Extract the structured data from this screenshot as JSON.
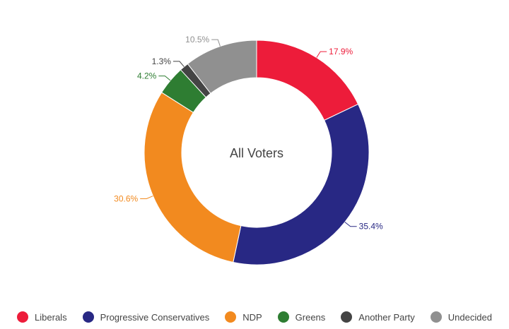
{
  "chart_data": {
    "type": "pie",
    "style": "donut",
    "center_label": "All Voters",
    "categories": [
      "Liberals",
      "Progressive Conservatives",
      "NDP",
      "Greens",
      "Another Party",
      "Undecided"
    ],
    "values": [
      17.9,
      35.4,
      30.6,
      4.2,
      1.3,
      10.5
    ],
    "value_labels": [
      "17.9%",
      "35.4%",
      "30.6%",
      "4.2%",
      "1.3%",
      "10.5%"
    ],
    "colors": [
      "#ed1c3a",
      "#282884",
      "#f28a1f",
      "#2e7d32",
      "#444444",
      "#909090"
    ],
    "legend_position": "bottom-center"
  }
}
